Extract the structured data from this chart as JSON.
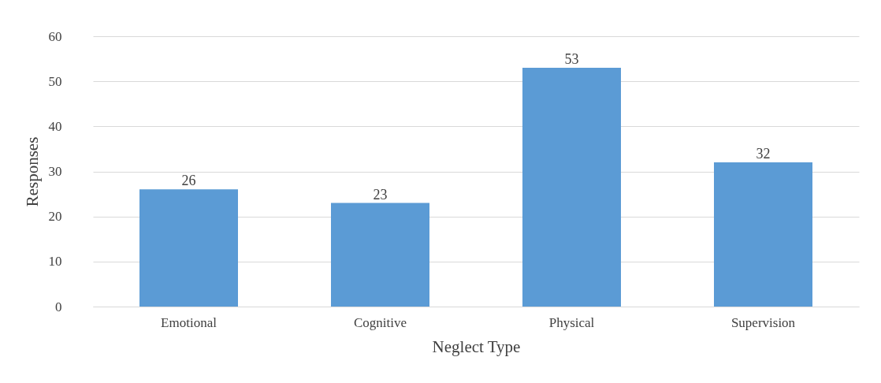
{
  "chart_data": {
    "type": "bar",
    "xlabel": "Neglect Type",
    "ylabel": "Responses",
    "categories": [
      "Emotional",
      "Cognitive",
      "Physical",
      "Supervision"
    ],
    "values": [
      26,
      23,
      53,
      32
    ],
    "color": "#5b9bd5",
    "ylim": [
      0,
      60
    ],
    "yticks": [
      0,
      10,
      20,
      30,
      40,
      50,
      60
    ],
    "grid": "y",
    "data_labels": true
  }
}
